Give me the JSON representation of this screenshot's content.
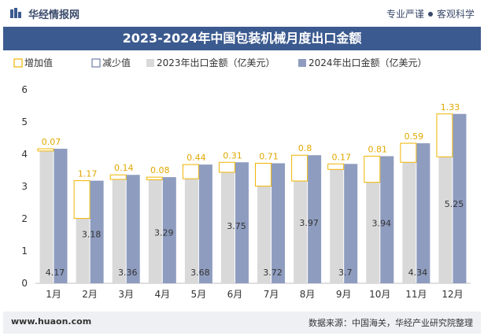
{
  "header": {
    "site_name": "华经情报网",
    "tag1": "专业严谨",
    "tag2": "客观科学"
  },
  "title": "2023-2024年中国包装机械月度出口金额",
  "legend": {
    "increase": "增加值",
    "decrease": "减少值",
    "s2023": "2023年出口金额（亿美元）",
    "s2024": "2024年出口金额（亿美元）"
  },
  "footer": {
    "url": "www.huaon.com",
    "source": "数据来源：中国海关，华经产业研究院整理"
  },
  "colors": {
    "header_bg": "#3b5a8f",
    "bar_2023": "#d9d9d9",
    "bar_2024": "#8e9cbf",
    "increase": "#f0b400",
    "decrease": "#6f7faa"
  },
  "chart_data": {
    "type": "bar",
    "categories": [
      "1月",
      "2月",
      "3月",
      "4月",
      "5月",
      "6月",
      "7月",
      "8月",
      "9月",
      "10月",
      "11月",
      "12月"
    ],
    "ylim": [
      0,
      6
    ],
    "yticks": [
      0,
      1,
      2,
      3,
      4,
      5,
      6
    ],
    "series": [
      {
        "name": "2023年出口金额（亿美元）",
        "values": [
          4.1,
          2.01,
          3.22,
          3.21,
          3.24,
          3.44,
          3.01,
          3.17,
          3.53,
          3.13,
          3.75,
          3.92
        ]
      },
      {
        "name": "2024年出口金额（亿美元）",
        "values": [
          4.17,
          3.18,
          3.36,
          3.29,
          3.68,
          3.75,
          3.72,
          3.97,
          3.7,
          3.94,
          4.34,
          5.25
        ]
      }
    ],
    "increase": [
      0.07,
      1.17,
      0.14,
      0.08,
      0.44,
      0.31,
      0.71,
      0.8,
      0.17,
      0.81,
      0.59,
      1.33
    ],
    "labels_2024": [
      "4.17",
      "3.18",
      "3.36",
      "3.29",
      "3.68",
      "3.75",
      "3.72",
      "3.97",
      "3.7",
      "3.94",
      "4.34",
      "5.25"
    ],
    "labels_increase": [
      "0.07",
      "1.17",
      "0.14",
      "0.08",
      "0.44",
      "0.31",
      "0.71",
      "0.8",
      "0.17",
      "0.81",
      "0.59",
      "1.33"
    ]
  }
}
